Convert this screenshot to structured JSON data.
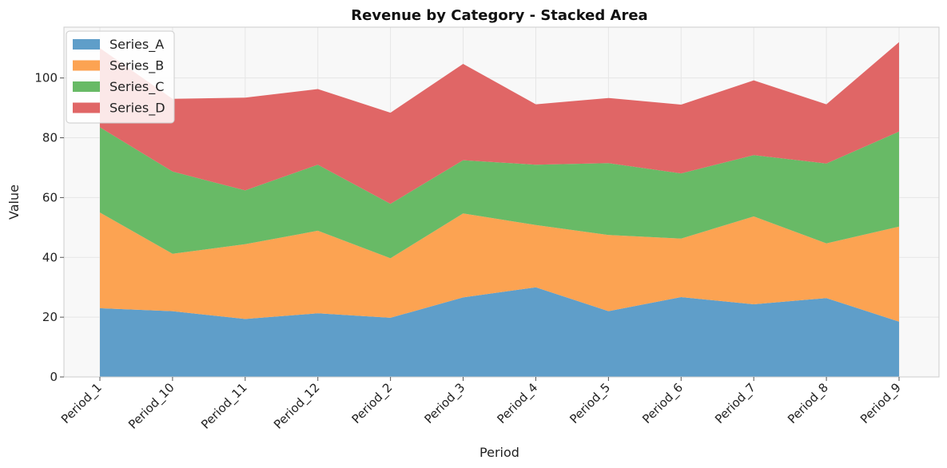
{
  "chart_data": {
    "type": "area",
    "stacked": true,
    "title": "Revenue by Category - Stacked Area",
    "xlabel": "Period",
    "ylabel": "Value",
    "ylim": [
      0,
      117
    ],
    "yticks": [
      0,
      20,
      40,
      60,
      80,
      100
    ],
    "grid": true,
    "legend_position": "top-left",
    "categories": [
      "Period_1",
      "Period_10",
      "Period_11",
      "Period_12",
      "Period_2",
      "Period_3",
      "Period_4",
      "Period_5",
      "Period_6",
      "Period_7",
      "Period_8",
      "Period_9"
    ],
    "series": [
      {
        "name": "Series_A",
        "color": "#5f9ec9",
        "values": [
          23.0,
          22.0,
          19.4,
          21.3,
          19.8,
          26.6,
          30.0,
          22.0,
          26.7,
          24.3,
          26.4,
          18.5
        ]
      },
      {
        "name": "Series_B",
        "color": "#fca352",
        "values": [
          32.0,
          19.2,
          25.0,
          27.6,
          19.9,
          28.1,
          20.8,
          25.5,
          19.6,
          29.4,
          18.3,
          31.8
        ]
      },
      {
        "name": "Series_C",
        "color": "#68ba66",
        "values": [
          28.5,
          27.5,
          18.0,
          22.1,
          18.2,
          17.8,
          20.2,
          24.0,
          21.8,
          20.5,
          26.7,
          31.8
        ]
      },
      {
        "name": "Series_D",
        "color": "#e06666",
        "values": [
          26.5,
          24.3,
          31.0,
          25.3,
          30.5,
          32.2,
          20.2,
          21.8,
          23.0,
          25.0,
          19.8,
          29.9
        ]
      }
    ]
  }
}
